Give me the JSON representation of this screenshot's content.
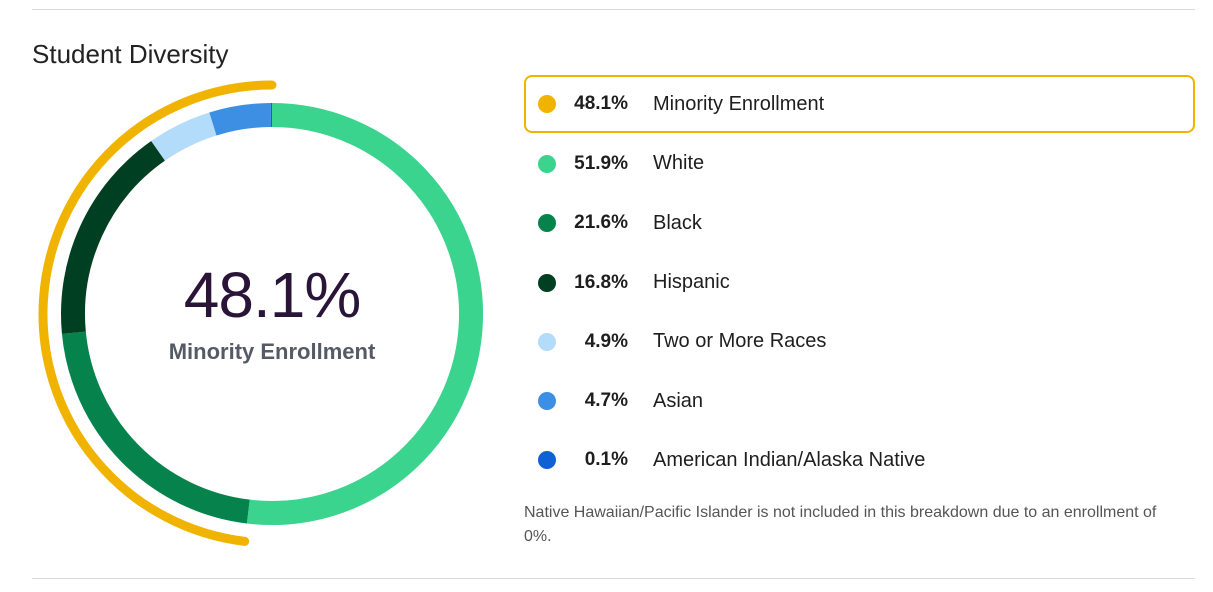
{
  "section_title": "Student Diversity",
  "center": {
    "value": "48.1%",
    "label": "Minority Enrollment"
  },
  "legend": [
    {
      "pct": "48.1%",
      "name": "Minority Enrollment",
      "color": "#f0b400",
      "highlight": true
    },
    {
      "pct": "51.9%",
      "name": "White",
      "color": "#3ad48e"
    },
    {
      "pct": "21.6%",
      "name": "Black",
      "color": "#06834d"
    },
    {
      "pct": "16.8%",
      "name": "Hispanic",
      "color": "#003f22"
    },
    {
      "pct": "4.9%",
      "name": "Two or More Races",
      "color": "#b3dcfb"
    },
    {
      "pct": "4.7%",
      "name": "Asian",
      "color": "#3d8fe4"
    },
    {
      "pct": "0.1%",
      "name": "American Indian/Alaska Native",
      "color": "#1060d6"
    }
  ],
  "footnote": "Native Hawaiian/Pacific Islander is not included in this breakdown due to an enrollment of 0%.",
  "chart_data": {
    "type": "pie",
    "categories": [
      "White",
      "Black",
      "Hispanic",
      "Two or More Races",
      "Asian",
      "American Indian/Alaska Native"
    ],
    "values": [
      51.9,
      21.6,
      16.8,
      4.9,
      4.7,
      0.1
    ],
    "colors": [
      "#3ad48e",
      "#06834d",
      "#003f22",
      "#b3dcfb",
      "#3d8fe4",
      "#1060d6"
    ],
    "highlight_arc": {
      "value": 48.1,
      "color": "#f0b400"
    },
    "legend_position": "right"
  }
}
